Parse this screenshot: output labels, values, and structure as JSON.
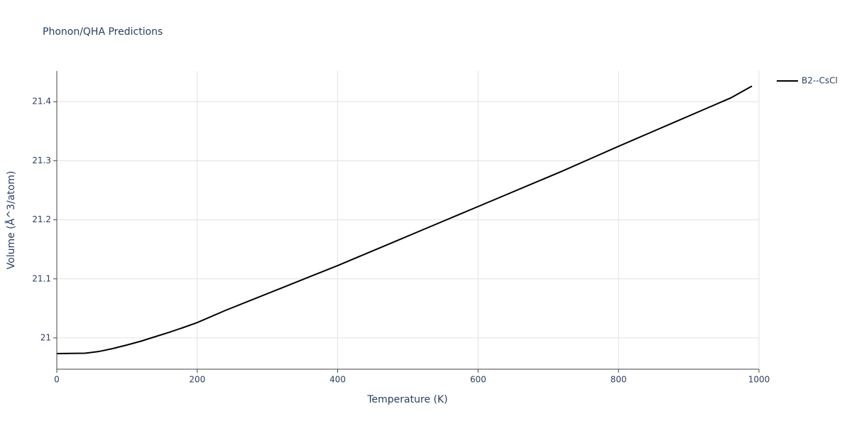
{
  "chart_data": {
    "type": "line",
    "title": "Phonon/QHA Predictions",
    "x_label": "Temperature (K)",
    "y_label": "Volume (Å^3/atom)",
    "x": [
      0,
      20,
      40,
      60,
      80,
      100,
      120,
      140,
      160,
      180,
      200,
      240,
      280,
      320,
      360,
      400,
      440,
      480,
      520,
      560,
      600,
      640,
      680,
      720,
      760,
      800,
      840,
      880,
      920,
      960,
      990
    ],
    "series": [
      {
        "name": "B2--CsCl",
        "color": "#000000",
        "values": [
          20.9735,
          20.9737,
          20.974,
          20.977,
          20.982,
          20.988,
          20.9945,
          21.002,
          21.0095,
          21.0175,
          21.026,
          21.0465,
          21.0655,
          21.0845,
          21.1035,
          21.1225,
          21.1425,
          21.1625,
          21.1825,
          21.2025,
          21.2225,
          21.2425,
          21.2625,
          21.2825,
          21.3035,
          21.3245,
          21.345,
          21.3655,
          21.386,
          21.4065,
          21.4265
        ]
      }
    ],
    "xlim": [
      0,
      1000
    ],
    "xticks": [
      0,
      200,
      400,
      600,
      800,
      1000
    ],
    "ylim": [
      20.947,
      21.452
    ],
    "yticks": [
      21,
      21.1,
      21.2,
      21.3,
      21.4
    ],
    "grid": true,
    "legend": "right"
  }
}
